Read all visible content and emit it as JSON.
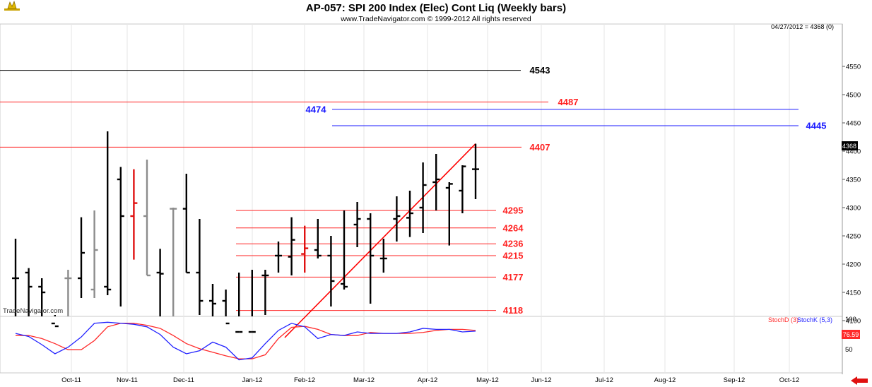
{
  "header": {
    "title": "AP-057:  SPI 200 Index (Elec) Cont Liq  (Weekly bars)",
    "subtitle": "www.TradeNavigator.com © 1999-2012 All rights reserved",
    "last_price_note": "04/27/2012 = 4368 (0)",
    "watermark": "TradeNavigator.com"
  },
  "indicator": {
    "stochd_label": "StochD (3)",
    "stochk_label": "StochK (5,3)",
    "stochd_color": "#ff2a2a",
    "stochk_color": "#2222ff",
    "current_value_label": "76.59",
    "y_ticks": [
      "100",
      "50"
    ]
  },
  "chart_data": [
    {
      "type": "ohlc",
      "title": "AP-057:  SPI 200 Index (Elec) Cont Liq  (Weekly bars)",
      "ylim": [
        4070,
        4580
      ],
      "y_ticks": [
        4100,
        4150,
        4200,
        4250,
        4300,
        4350,
        4400,
        4450,
        4500,
        4550
      ],
      "x_ticks": [
        "Oct-11",
        "Nov-11",
        "Dec-11",
        "Jan-12",
        "Feb-12",
        "Mar-12",
        "Apr-12",
        "May-12",
        "Jun-12",
        "Jul-12",
        "Aug-12",
        "Sep-12",
        "Oct-12"
      ],
      "last_price_label": "4368",
      "bars": [
        {
          "o": 4175,
          "h": 4245,
          "l": 4070,
          "c": 4175,
          "color": "black"
        },
        {
          "o": 4185,
          "h": 4193,
          "l": 4070,
          "c": 4160,
          "color": "black"
        },
        {
          "o": 4160,
          "h": 4175,
          "l": 4070,
          "c": 4150,
          "color": "black"
        },
        {
          "o": 4095,
          "h": 4110,
          "l": 4070,
          "c": 4090,
          "color": "black"
        },
        {
          "o": 4175,
          "h": 4190,
          "l": 4070,
          "c": 4175,
          "color": "gray"
        },
        {
          "o": 4175,
          "h": 4283,
          "l": 4140,
          "c": 4220,
          "color": "black"
        },
        {
          "o": 4155,
          "h": 4295,
          "l": 4140,
          "c": 4225,
          "color": "gray"
        },
        {
          "o": 4160,
          "h": 4435,
          "l": 4145,
          "c": 4155,
          "color": "black"
        },
        {
          "o": 4350,
          "h": 4372,
          "l": 4125,
          "c": 4285,
          "color": "black"
        },
        {
          "o": 4285,
          "h": 4368,
          "l": 4208,
          "c": 4308,
          "color": "red"
        },
        {
          "o": 4285,
          "h": 4385,
          "l": 4180,
          "c": 4180,
          "color": "gray"
        },
        {
          "o": 4185,
          "h": 4227,
          "l": 4070,
          "c": 4183,
          "color": "black"
        },
        {
          "o": 4298,
          "h": 4300,
          "l": 4070,
          "c": 4298,
          "color": "gray"
        },
        {
          "o": 4298,
          "h": 4360,
          "l": 4185,
          "c": 4185,
          "color": "black"
        },
        {
          "o": 4185,
          "h": 4280,
          "l": 4110,
          "c": 4135,
          "color": "black"
        },
        {
          "o": 4135,
          "h": 4165,
          "l": 4070,
          "c": 4130,
          "color": "black"
        },
        {
          "o": 4135,
          "h": 4155,
          "l": 4070,
          "c": 4095,
          "color": "black"
        },
        {
          "o": 4080,
          "h": 4185,
          "l": 4080,
          "c": 4080,
          "color": "black"
        },
        {
          "o": 4080,
          "h": 4190,
          "l": 4080,
          "c": 4080,
          "color": "black"
        },
        {
          "o": 4180,
          "h": 4190,
          "l": 4110,
          "c": 4180,
          "color": "black"
        },
        {
          "o": 4215,
          "h": 4240,
          "l": 4185,
          "c": 4215,
          "color": "black"
        },
        {
          "o": 4213,
          "h": 4283,
          "l": 4180,
          "c": 4243,
          "color": "black"
        },
        {
          "o": 4218,
          "h": 4268,
          "l": 4185,
          "c": 4228,
          "color": "red"
        },
        {
          "o": 4225,
          "h": 4280,
          "l": 4210,
          "c": 4215,
          "color": "black"
        },
        {
          "o": 4215,
          "h": 4250,
          "l": 4125,
          "c": 4170,
          "color": "black"
        },
        {
          "o": 4165,
          "h": 4295,
          "l": 4155,
          "c": 4160,
          "color": "black"
        },
        {
          "o": 4270,
          "h": 4310,
          "l": 4230,
          "c": 4280,
          "color": "black"
        },
        {
          "o": 4280,
          "h": 4290,
          "l": 4130,
          "c": 4215,
          "color": "black"
        },
        {
          "o": 4210,
          "h": 4245,
          "l": 4185,
          "c": 4210,
          "color": "black"
        },
        {
          "o": 4280,
          "h": 4320,
          "l": 4240,
          "c": 4285,
          "color": "black"
        },
        {
          "o": 4282,
          "h": 4330,
          "l": 4248,
          "c": 4290,
          "color": "black"
        },
        {
          "o": 4300,
          "h": 4380,
          "l": 4255,
          "c": 4340,
          "color": "black"
        },
        {
          "o": 4345,
          "h": 4395,
          "l": 4295,
          "c": 4350,
          "color": "black"
        },
        {
          "o": 4335,
          "h": 4345,
          "l": 4233,
          "c": 4342,
          "color": "black"
        },
        {
          "o": 4330,
          "h": 4375,
          "l": 4290,
          "c": 4373,
          "color": "black"
        },
        {
          "o": 4368,
          "h": 4413,
          "l": 4315,
          "c": 4368,
          "color": "black"
        }
      ],
      "levels": [
        {
          "value": 4543,
          "label": "4543",
          "color": "#000000",
          "start_bar": 0
        },
        {
          "value": 4487,
          "label": "4487",
          "color": "#ff2222",
          "start_bar": 0
        },
        {
          "value": 4474,
          "label": "4474",
          "color": "#1a1aff",
          "start_bar": 25
        },
        {
          "value": 4445,
          "label": "4445",
          "color": "#1a1aff",
          "start_bar": 25
        },
        {
          "value": 4407,
          "label": "4407",
          "color": "#ff2222",
          "start_bar": 0
        },
        {
          "value": 4295,
          "label": "4295",
          "color": "#ff2222",
          "start_bar": 18
        },
        {
          "value": 4264,
          "label": "4264",
          "color": "#ff2222",
          "start_bar": 18
        },
        {
          "value": 4236,
          "label": "4236",
          "color": "#ff2222",
          "start_bar": 18
        },
        {
          "value": 4215,
          "label": "4215",
          "color": "#ff2222",
          "start_bar": 18
        },
        {
          "value": 4177,
          "label": "4177",
          "color": "#ff2222",
          "start_bar": 18
        },
        {
          "value": 4118,
          "label": "4118",
          "color": "#ff2222",
          "start_bar": 18
        }
      ],
      "trendline": {
        "from": {
          "bar": 20,
          "value": 4070
        },
        "to": {
          "bar": 35,
          "value": 4413
        },
        "color": "#ff0000"
      }
    },
    {
      "type": "line",
      "title": "",
      "ylim": [
        0,
        100
      ],
      "series": [
        {
          "name": "StochD (3)",
          "color": "#ff2a2a",
          "values": [
            68,
            68,
            62,
            52,
            40,
            40,
            58,
            85,
            92,
            92,
            88,
            82,
            68,
            52,
            42,
            35,
            28,
            22,
            22,
            30,
            62,
            84,
            86,
            80,
            70,
            68,
            68,
            74,
            72,
            72,
            72,
            74,
            78,
            80,
            80,
            78
          ]
        },
        {
          "name": "StochK (5,3)",
          "color": "#2222ff",
          "values": [
            72,
            66,
            50,
            32,
            45,
            65,
            92,
            94,
            92,
            90,
            85,
            70,
            45,
            32,
            38,
            55,
            45,
            20,
            24,
            52,
            78,
            92,
            85,
            62,
            70,
            68,
            75,
            72,
            72,
            72,
            75,
            82,
            80,
            80,
            75,
            76.59
          ]
        }
      ]
    }
  ]
}
